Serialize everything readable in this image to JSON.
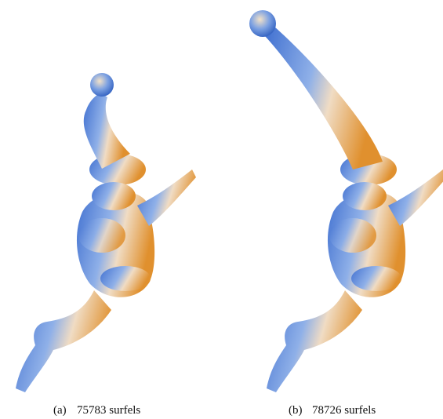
{
  "figures": [
    {
      "label": "(a)",
      "caption": "75783 surfels"
    },
    {
      "label": "(b)",
      "caption": "78726 surfels"
    }
  ]
}
